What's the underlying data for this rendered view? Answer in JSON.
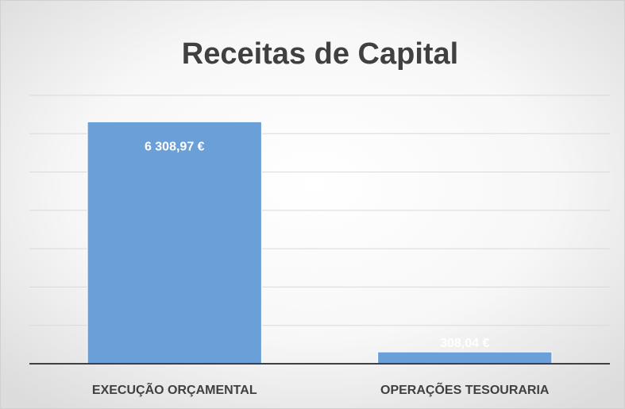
{
  "chart_data": {
    "type": "bar",
    "title": "Receitas de Capital",
    "categories": [
      "EXECUÇÃO ORÇAMENTAL",
      "OPERAÇÕES TESOURARIA"
    ],
    "values": [
      6308.97,
      308.04
    ],
    "value_labels": [
      "6 308,97 €",
      "308,04 €"
    ],
    "color": "#6a9fd8",
    "ylim": [
      0,
      7000
    ],
    "yticks": [
      0,
      1000,
      2000,
      3000,
      4000,
      5000,
      6000,
      7000
    ],
    "grid": true
  }
}
